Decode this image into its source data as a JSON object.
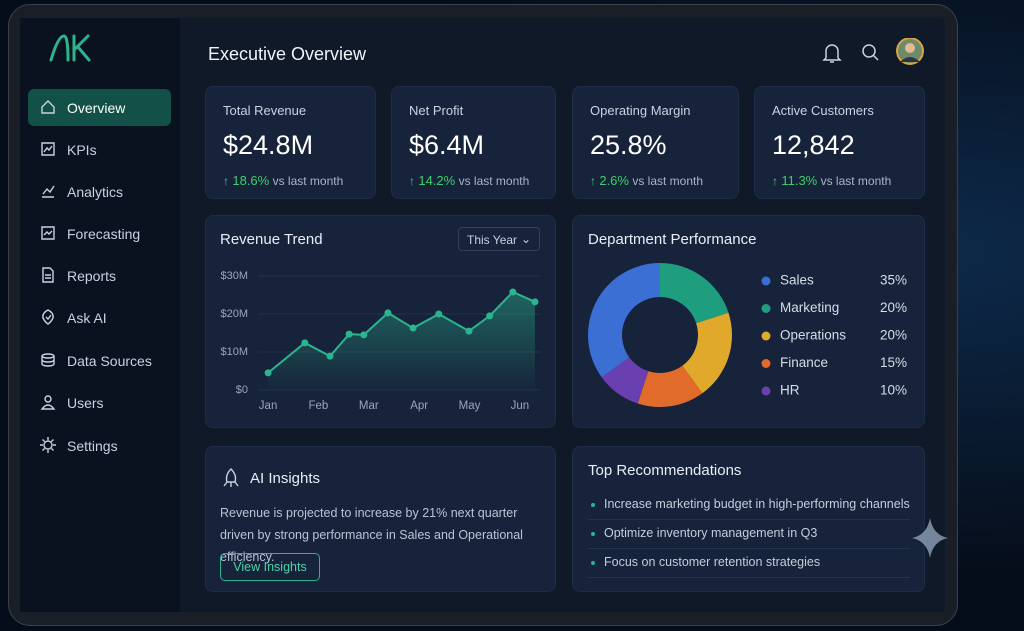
{
  "sidebar": {
    "items": [
      "Overview",
      "KPIs",
      "Analytics",
      "Forecasting",
      "Reports",
      "Ask AI",
      "Data Sources",
      "Users",
      "Settings"
    ],
    "active": 0
  },
  "header": {
    "title": "Executive Overview"
  },
  "kpis": [
    {
      "label": "Total Revenue",
      "value": "$24.8M",
      "change": "18.6%",
      "note": "vs last month"
    },
    {
      "label": "Net Profit",
      "value": "$6.4M",
      "change": "14.2%",
      "note": "vs last month"
    },
    {
      "label": "Operating Margin",
      "value": "25.8%",
      "change": "2.6%",
      "note": "vs last month"
    },
    {
      "label": "Active Customers",
      "value": "12,842",
      "change": "11.3%",
      "note": "vs last month"
    }
  ],
  "chart_data": [
    {
      "type": "line",
      "title": "Revenue Trend",
      "dropdown": "This Year",
      "color": "#2bb58f",
      "x": [
        0,
        0.73,
        1.23,
        1.61,
        1.9,
        2.38,
        2.88,
        3.39,
        3.99,
        4.4,
        4.86,
        5.3
      ],
      "values": [
        4.5,
        12.4,
        8.9,
        14.7,
        14.5,
        20.3,
        16.3,
        20,
        15.5,
        19.5,
        25.8,
        23.2
      ],
      "xlim": [
        -0.2,
        5.4
      ],
      "xticks": [
        {
          "value": 0,
          "label": "Jan"
        },
        {
          "value": 1,
          "label": "Feb"
        },
        {
          "value": 2,
          "label": "Mar"
        },
        {
          "value": 3,
          "label": "Apr"
        },
        {
          "value": 4,
          "label": "May"
        },
        {
          "value": 5,
          "label": "Jun"
        }
      ],
      "ylim": [
        0,
        30
      ],
      "yticks": [
        {
          "value": 0,
          "label": "$0"
        },
        {
          "value": 10,
          "label": "$10M"
        },
        {
          "value": 20,
          "label": "$20M"
        },
        {
          "value": 30,
          "label": "$30M"
        }
      ],
      "grid": true
    },
    {
      "type": "pie",
      "title": "Department Performance",
      "categories": [
        "Sales",
        "Marketing",
        "Operations",
        "Finance",
        "HR"
      ],
      "values": [
        35,
        20,
        20,
        15,
        10
      ],
      "value_labels": [
        "35%",
        "20%",
        "20%",
        "15%",
        "10%"
      ],
      "colors": [
        "#3b6fd4",
        "#1f9e7f",
        "#e0a92b",
        "#e06b2b",
        "#6a3fb0"
      ]
    }
  ],
  "ai_insights": {
    "title": "AI Insights",
    "text": "Revenue is projected to increase by 21% next quarter driven by strong performance in Sales and Operational efficiency.",
    "button": "View Insights"
  },
  "recommendations": {
    "title": "Top Recommendations",
    "items": [
      "Increase marketing budget in high-performing channels",
      "Optimize inventory management in Q3",
      "Focus on customer retention strategies"
    ]
  }
}
